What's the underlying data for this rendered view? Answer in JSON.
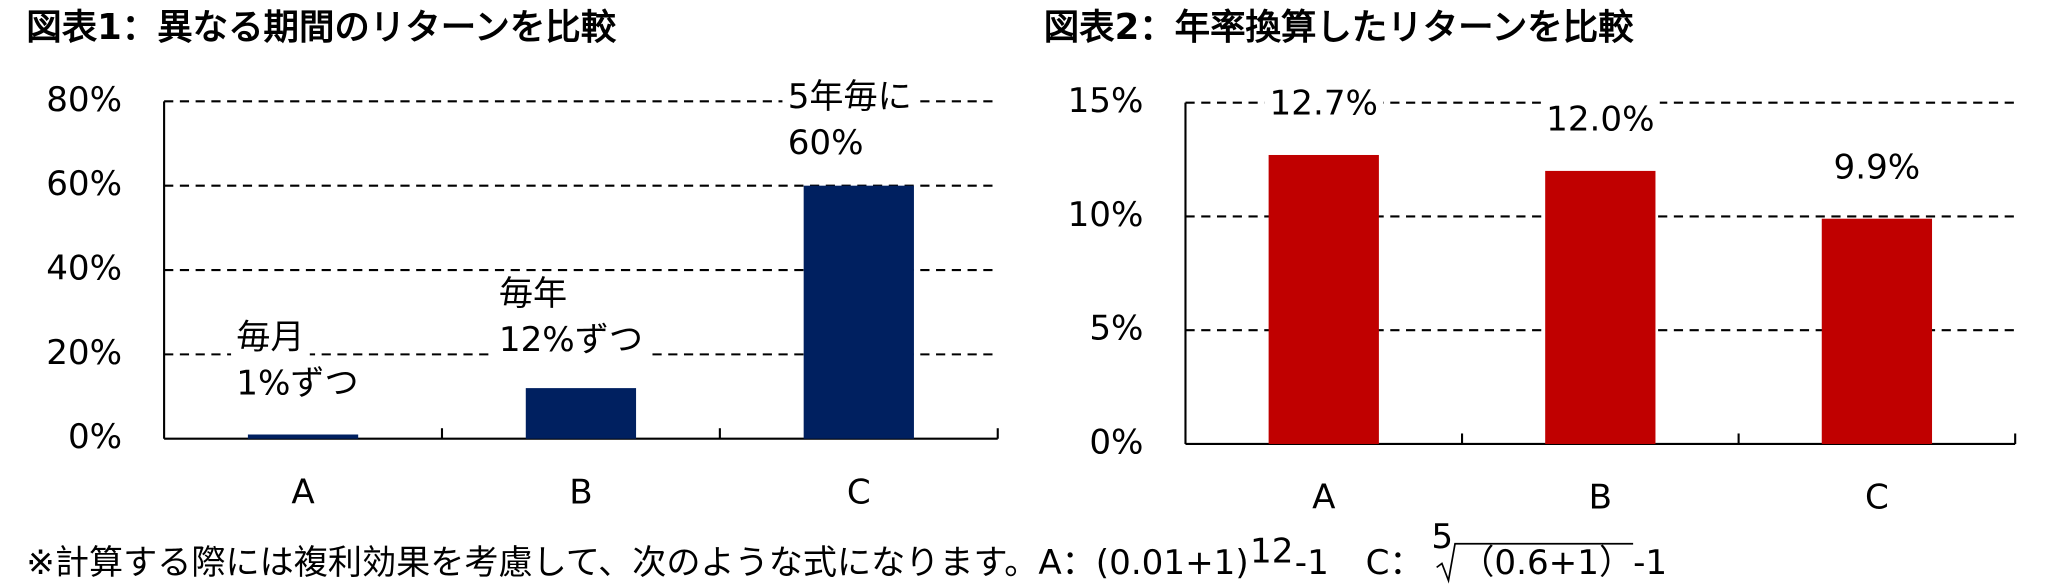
{
  "chart_data": [
    {
      "type": "bar",
      "title": "図表1：異なる期間のリターンを比較",
      "categories": [
        "A",
        "B",
        "C"
      ],
      "values": [
        1,
        12,
        60
      ],
      "color": "#002060",
      "annotations": [
        [
          "毎月",
          "1%ずつ"
        ],
        [
          "毎年",
          "12%ずつ"
        ],
        [
          "5年毎に",
          "60%"
        ]
      ],
      "ylim": [
        0,
        80
      ],
      "yticks": [
        {
          "value": 0,
          "label": "0%"
        },
        {
          "value": 20,
          "label": "20%"
        },
        {
          "value": 40,
          "label": "40%"
        },
        {
          "value": 60,
          "label": "60%"
        },
        {
          "value": 80,
          "label": "80%"
        }
      ],
      "grid": true
    },
    {
      "type": "bar",
      "title": "図表2：年率換算したリターンを比較",
      "categories": [
        "A",
        "B",
        "C"
      ],
      "values": [
        12.7,
        12.0,
        9.9
      ],
      "value_labels": [
        "12.7%",
        "12.0%",
        "9.9%"
      ],
      "color": "#c00000",
      "ylim": [
        0,
        15
      ],
      "yticks": [
        {
          "value": 0,
          "label": "0%"
        },
        {
          "value": 5,
          "label": "5%"
        },
        {
          "value": 10,
          "label": "10%"
        },
        {
          "value": 15,
          "label": "15%"
        }
      ],
      "grid": true
    }
  ],
  "footnote": {
    "text": "※計算する際には複利効果を考慮して、次のような式になります。A：",
    "a_base": "(0.01+1)",
    "a_exp": "12",
    "a_tail": "-1",
    "c_label": "C：",
    "c_root_index": "5",
    "c_radicand": "（0.6+1）",
    "c_tail": "-1"
  }
}
